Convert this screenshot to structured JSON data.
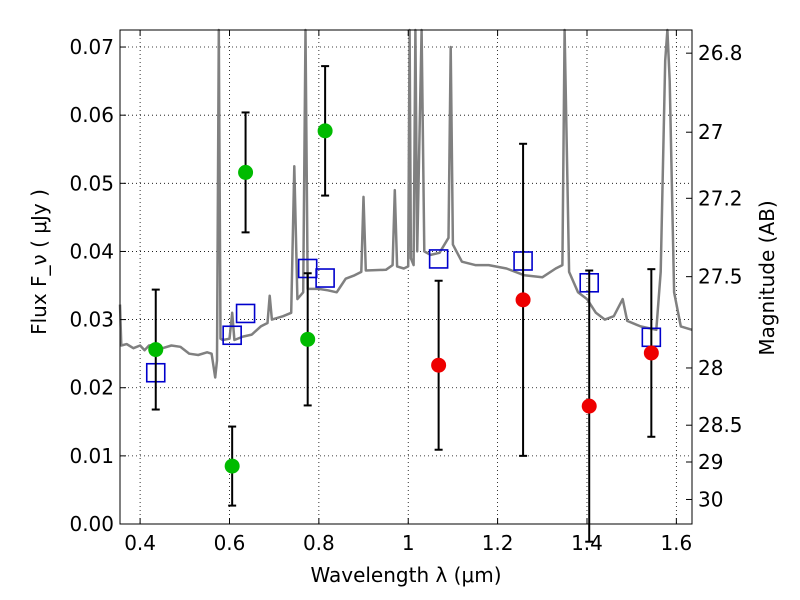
{
  "chart_data": {
    "type": "scatter",
    "xlabel": "Wavelength λ (μm)",
    "ylabel": "Flux F_ν ( μJy )",
    "ylabel_right": "Magnitude (AB)",
    "xlim": [
      0.355,
      1.635
    ],
    "ylim": [
      0.0,
      0.0725
    ],
    "x_ticks": [
      "0.4",
      "0.6",
      "0.8",
      "1",
      "1.2",
      "1.4",
      "1.6"
    ],
    "x_tick_values": [
      0.4,
      0.6,
      0.8,
      1.0,
      1.2,
      1.4,
      1.6
    ],
    "y_ticks": [
      "0.00",
      "0.01",
      "0.02",
      "0.03",
      "0.04",
      "0.05",
      "0.06",
      "0.07"
    ],
    "y_tick_values": [
      0.0,
      0.01,
      0.02,
      0.03,
      0.04,
      0.05,
      0.06,
      0.07
    ],
    "right_ticks": [
      {
        "label": "26.8",
        "flux": 0.0691
      },
      {
        "label": "27",
        "flux": 0.0575
      },
      {
        "label": "27.2",
        "flux": 0.0478
      },
      {
        "label": "27.5",
        "flux": 0.0363
      },
      {
        "label": "28",
        "flux": 0.0229
      },
      {
        "label": "28.5",
        "flux": 0.0145
      },
      {
        "label": "29",
        "flux": 0.0091
      },
      {
        "label": "30",
        "flux": 0.0036
      }
    ],
    "grid": true,
    "series": [
      {
        "marker": "circle-filled",
        "color": "#00bb00",
        "points": [
          {
            "x": 0.435,
            "y": 0.0256,
            "err": 0.0088
          },
          {
            "x": 0.606,
            "y": 0.0085,
            "err": 0.0058
          },
          {
            "x": 0.636,
            "y": 0.0516,
            "err": 0.0088
          },
          {
            "x": 0.775,
            "y": 0.0271,
            "err": 0.0097
          },
          {
            "x": 0.814,
            "y": 0.0577,
            "err": 0.0095
          }
        ]
      },
      {
        "marker": "circle-filled",
        "color": "#ee0000",
        "points": [
          {
            "x": 1.068,
            "y": 0.0233,
            "err": 0.0124
          },
          {
            "x": 1.257,
            "y": 0.0329,
            "err": 0.0229
          },
          {
            "x": 1.405,
            "y": 0.0173,
            "err": 0.0199
          },
          {
            "x": 1.544,
            "y": 0.0251,
            "err": 0.0123
          }
        ]
      },
      {
        "marker": "square-open",
        "color": "#0000cc",
        "points": [
          {
            "x": 0.435,
            "y": 0.0222
          },
          {
            "x": 0.606,
            "y": 0.0277
          },
          {
            "x": 0.636,
            "y": 0.0309
          },
          {
            "x": 0.775,
            "y": 0.0375
          },
          {
            "x": 0.814,
            "y": 0.0361
          },
          {
            "x": 1.068,
            "y": 0.0389
          },
          {
            "x": 1.257,
            "y": 0.0386
          },
          {
            "x": 1.405,
            "y": 0.0354
          },
          {
            "x": 1.544,
            "y": 0.0274
          }
        ]
      },
      {
        "marker": "line",
        "color": "#808080",
        "points": [
          {
            "x": 0.355,
            "y": 0.0322
          },
          {
            "x": 0.358,
            "y": 0.0262
          },
          {
            "x": 0.37,
            "y": 0.0264
          },
          {
            "x": 0.385,
            "y": 0.0258
          },
          {
            "x": 0.4,
            "y": 0.0262
          },
          {
            "x": 0.41,
            "y": 0.0255
          },
          {
            "x": 0.42,
            "y": 0.0262
          },
          {
            "x": 0.435,
            "y": 0.0263
          },
          {
            "x": 0.45,
            "y": 0.0258
          },
          {
            "x": 0.47,
            "y": 0.0262
          },
          {
            "x": 0.49,
            "y": 0.026
          },
          {
            "x": 0.51,
            "y": 0.025
          },
          {
            "x": 0.53,
            "y": 0.0248
          },
          {
            "x": 0.55,
            "y": 0.0252
          },
          {
            "x": 0.56,
            "y": 0.025
          },
          {
            "x": 0.568,
            "y": 0.0215
          },
          {
            "x": 0.572,
            "y": 0.024
          },
          {
            "x": 0.576,
            "y": 0.0725
          },
          {
            "x": 0.58,
            "y": 0.0272
          },
          {
            "x": 0.585,
            "y": 0.027
          },
          {
            "x": 0.6,
            "y": 0.0272
          },
          {
            "x": 0.606,
            "y": 0.031
          },
          {
            "x": 0.611,
            "y": 0.027
          },
          {
            "x": 0.63,
            "y": 0.0275
          },
          {
            "x": 0.65,
            "y": 0.0278
          },
          {
            "x": 0.67,
            "y": 0.029
          },
          {
            "x": 0.685,
            "y": 0.0295
          },
          {
            "x": 0.69,
            "y": 0.0335
          },
          {
            "x": 0.695,
            "y": 0.03
          },
          {
            "x": 0.72,
            "y": 0.0305
          },
          {
            "x": 0.738,
            "y": 0.031
          },
          {
            "x": 0.745,
            "y": 0.0525
          },
          {
            "x": 0.752,
            "y": 0.033
          },
          {
            "x": 0.765,
            "y": 0.034
          },
          {
            "x": 0.77,
            "y": 0.0725
          },
          {
            "x": 0.775,
            "y": 0.0345
          },
          {
            "x": 0.8,
            "y": 0.0345
          },
          {
            "x": 0.82,
            "y": 0.0343
          },
          {
            "x": 0.84,
            "y": 0.034
          },
          {
            "x": 0.85,
            "y": 0.035
          },
          {
            "x": 0.86,
            "y": 0.036
          },
          {
            "x": 0.88,
            "y": 0.0365
          },
          {
            "x": 0.895,
            "y": 0.037
          },
          {
            "x": 0.9,
            "y": 0.048
          },
          {
            "x": 0.905,
            "y": 0.0372
          },
          {
            "x": 0.95,
            "y": 0.0373
          },
          {
            "x": 0.965,
            "y": 0.038
          },
          {
            "x": 0.97,
            "y": 0.049
          },
          {
            "x": 0.975,
            "y": 0.0378
          },
          {
            "x": 0.99,
            "y": 0.0375
          },
          {
            "x": 1.0,
            "y": 0.0378
          },
          {
            "x": 1.003,
            "y": 0.0725
          },
          {
            "x": 1.006,
            "y": 0.039
          },
          {
            "x": 1.012,
            "y": 0.038
          },
          {
            "x": 1.016,
            "y": 0.0725
          },
          {
            "x": 1.02,
            "y": 0.04
          },
          {
            "x": 1.03,
            "y": 0.0725
          },
          {
            "x": 1.036,
            "y": 0.04
          },
          {
            "x": 1.05,
            "y": 0.0395
          },
          {
            "x": 1.07,
            "y": 0.0398
          },
          {
            "x": 1.09,
            "y": 0.042
          },
          {
            "x": 1.095,
            "y": 0.07
          },
          {
            "x": 1.1,
            "y": 0.041
          },
          {
            "x": 1.12,
            "y": 0.0385
          },
          {
            "x": 1.15,
            "y": 0.038
          },
          {
            "x": 1.18,
            "y": 0.038
          },
          {
            "x": 1.22,
            "y": 0.0375
          },
          {
            "x": 1.26,
            "y": 0.0365
          },
          {
            "x": 1.3,
            "y": 0.0362
          },
          {
            "x": 1.33,
            "y": 0.0375
          },
          {
            "x": 1.345,
            "y": 0.038
          },
          {
            "x": 1.35,
            "y": 0.0725
          },
          {
            "x": 1.36,
            "y": 0.037
          },
          {
            "x": 1.38,
            "y": 0.034
          },
          {
            "x": 1.4,
            "y": 0.033
          },
          {
            "x": 1.42,
            "y": 0.031
          },
          {
            "x": 1.44,
            "y": 0.03
          },
          {
            "x": 1.46,
            "y": 0.0305
          },
          {
            "x": 1.48,
            "y": 0.033
          },
          {
            "x": 1.49,
            "y": 0.0298
          },
          {
            "x": 1.52,
            "y": 0.029
          },
          {
            "x": 1.555,
            "y": 0.0285
          },
          {
            "x": 1.565,
            "y": 0.037
          },
          {
            "x": 1.575,
            "y": 0.068
          },
          {
            "x": 1.58,
            "y": 0.0725
          },
          {
            "x": 1.585,
            "y": 0.065
          },
          {
            "x": 1.595,
            "y": 0.034
          },
          {
            "x": 1.61,
            "y": 0.029
          },
          {
            "x": 1.635,
            "y": 0.0285
          }
        ]
      }
    ]
  }
}
